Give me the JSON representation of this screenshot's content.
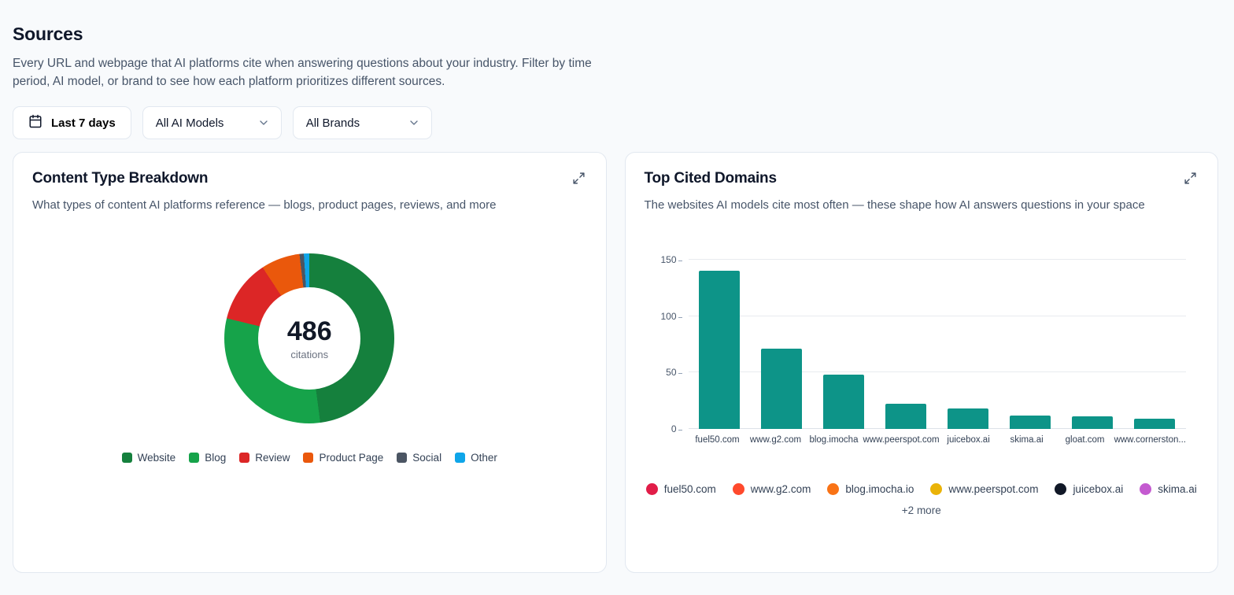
{
  "page": {
    "title": "Sources",
    "description": "Every URL and webpage that AI platforms cite when answering questions about your industry. Filter by time period, AI model, or brand to see how each platform prioritizes different sources."
  },
  "filters": {
    "date_range_label": "Last 7 days",
    "model_select_value": "All AI Models",
    "brand_select_value": "All Brands"
  },
  "content_type_card": {
    "title": "Content Type Breakdown",
    "subtitle": "What types of content AI platforms reference — blogs, product pages, reviews, and more",
    "center_value": "486",
    "center_label": "citations"
  },
  "top_domains_card": {
    "title": "Top Cited Domains",
    "subtitle": "The websites AI models cite most often — these shape how AI answers questions in your space",
    "more_label": "+2 more"
  },
  "chart_data": [
    {
      "type": "pie",
      "title": "Content Type Breakdown",
      "total": 486,
      "center_label": "citations",
      "segments": [
        {
          "label": "Website",
          "value": 233,
          "color": "#15803d"
        },
        {
          "label": "Blog",
          "value": 150,
          "color": "#16a34a"
        },
        {
          "label": "Review",
          "value": 58,
          "color": "#dc2626"
        },
        {
          "label": "Product Page",
          "value": 36,
          "color": "#ea580c"
        },
        {
          "label": "Social",
          "value": 4,
          "color": "#4b5563"
        },
        {
          "label": "Other",
          "value": 5,
          "color": "#0ea5e9"
        }
      ]
    },
    {
      "type": "bar",
      "title": "Top Cited Domains",
      "categories": [
        "fuel50.com",
        "www.g2.com",
        "blog.imocha",
        "www.peerspot.com",
        "juicebox.ai",
        "skima.ai",
        "gloat.com",
        "www.cornerston..."
      ],
      "values": [
        140,
        71,
        48,
        22,
        18,
        12,
        11,
        9
      ],
      "bar_color": "#0d9488",
      "xlabel": "",
      "ylabel": "",
      "ylim": [
        0,
        150
      ],
      "yticks": [
        0,
        50,
        100,
        150
      ],
      "grid": true,
      "legend_position": "bottom",
      "legend": [
        {
          "label": "fuel50.com",
          "color": "#e11d48"
        },
        {
          "label": "www.g2.com",
          "color": "#ff492c"
        },
        {
          "label": "blog.imocha.io",
          "color": "#f97316"
        },
        {
          "label": "www.peerspot.com",
          "color": "#eab308"
        },
        {
          "label": "juicebox.ai",
          "color": "#111827"
        },
        {
          "label": "skima.ai",
          "color": "#c45ad0"
        }
      ]
    }
  ]
}
